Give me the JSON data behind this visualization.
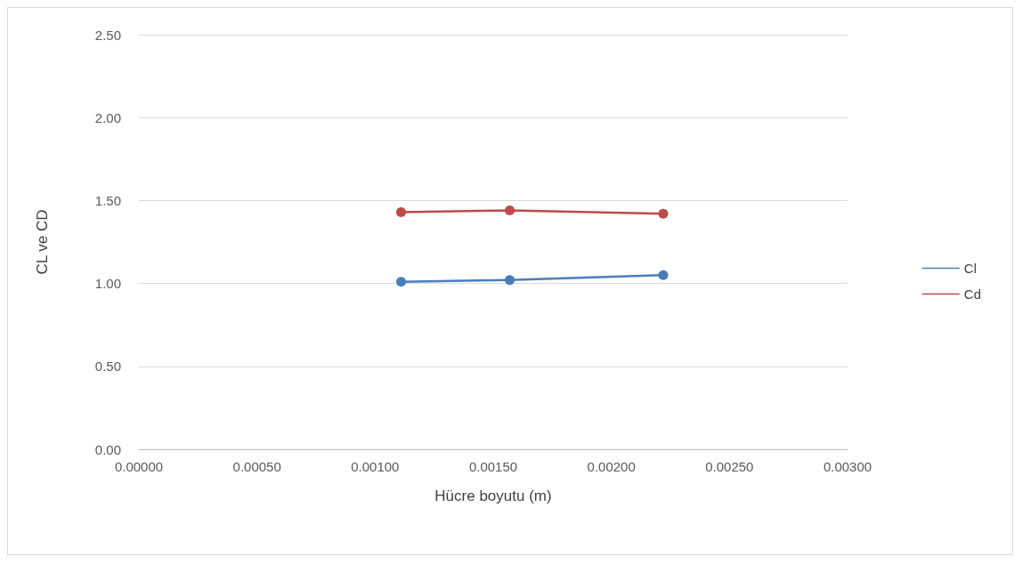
{
  "chart_data": {
    "type": "line",
    "xlabel": "Hücre boyutu (m)",
    "ylabel": "CL ve CD",
    "x": [
      0.00111,
      0.00157,
      0.00222
    ],
    "series": [
      {
        "name": "Cl",
        "color": "#4a7ebb",
        "values": [
          1.01,
          1.02,
          1.05
        ]
      },
      {
        "name": "Cd",
        "color": "#be4b48",
        "values": [
          1.43,
          1.44,
          1.42
        ]
      }
    ],
    "xlim": [
      0,
      0.003
    ],
    "xticks": [
      {
        "value": 0,
        "label": "0.00000"
      },
      {
        "value": 0.0005,
        "label": "0.00050"
      },
      {
        "value": 0.001,
        "label": "0.00100"
      },
      {
        "value": 0.0015,
        "label": "0.00150"
      },
      {
        "value": 0.002,
        "label": "0.00200"
      },
      {
        "value": 0.0025,
        "label": "0.00250"
      },
      {
        "value": 0.003,
        "label": "0.00300"
      }
    ],
    "ylim": [
      0,
      2.5
    ],
    "yticks": [
      {
        "value": 0,
        "label": "0.00"
      },
      {
        "value": 0.5,
        "label": "0.50"
      },
      {
        "value": 1,
        "label": "1.00"
      },
      {
        "value": 1.5,
        "label": "1.50"
      },
      {
        "value": 2,
        "label": "2.00"
      },
      {
        "value": 2.5,
        "label": "2.50"
      }
    ],
    "grid": "y",
    "legend": "right",
    "marker": "circle",
    "line_style": "solid"
  }
}
